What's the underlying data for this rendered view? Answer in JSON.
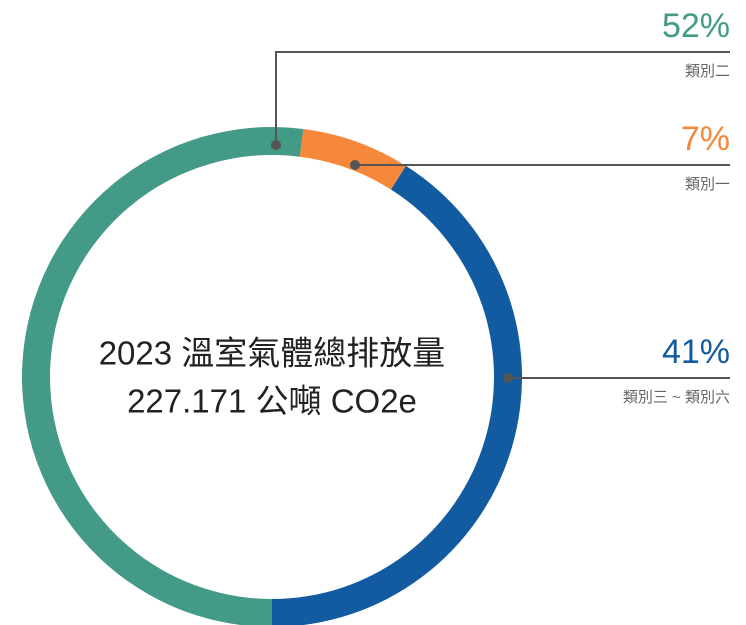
{
  "chart_data": {
    "type": "donut",
    "center_text": [
      "2023 溫室氣體總排放量",
      "227.171 公噸 CO2e"
    ],
    "categories": [
      "類別二",
      "類別一",
      "類別三 ~ 類別六"
    ],
    "values": [
      52,
      7,
      41
    ],
    "value_labels": [
      "52%",
      "7%",
      "41%"
    ],
    "colors": [
      "#439a86",
      "#f5883a",
      "#135ba1"
    ]
  }
}
